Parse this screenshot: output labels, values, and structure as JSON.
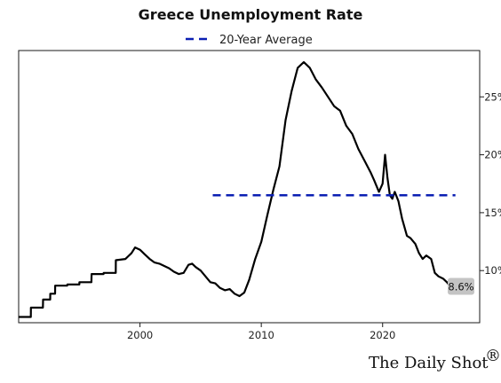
{
  "chart_data": {
    "type": "line",
    "title": "Greece Unemployment Rate",
    "xlabel": "",
    "ylabel": "",
    "xlim": [
      1990.0,
      2028.0
    ],
    "ylim": [
      5.5,
      29.0
    ],
    "x_ticks": [
      2000,
      2010,
      2020
    ],
    "y_ticks": [
      10,
      15,
      20,
      25
    ],
    "y_tick_format": "%",
    "y_axis_side": "right",
    "grid": false,
    "legend_position": "top-center",
    "series": [
      {
        "name": "",
        "color": "#000000",
        "style": "solid",
        "x": [
          1990.0,
          1991.0,
          1991.01,
          1992.0,
          1992.01,
          1992.6,
          1992.61,
          1993.0,
          1993.01,
          1994.0,
          1994.01,
          1995.0,
          1995.01,
          1996.0,
          1996.01,
          1997.0,
          1997.01,
          1998.0,
          1998.01,
          1998.8,
          1999.0,
          1999.3,
          1999.6,
          2000.0,
          2000.4,
          2000.8,
          2001.2,
          2001.6,
          2002.0,
          2002.4,
          2002.8,
          2003.2,
          2003.6,
          2004.0,
          2004.3,
          2004.6,
          2005.0,
          2005.4,
          2005.8,
          2006.2,
          2006.6,
          2007.0,
          2007.4,
          2007.8,
          2008.2,
          2008.6,
          2009.0,
          2009.5,
          2010.0,
          2010.5,
          2011.0,
          2011.5,
          2012.0,
          2012.5,
          2013.0,
          2013.5,
          2014.0,
          2014.5,
          2015.0,
          2015.5,
          2016.0,
          2016.5,
          2017.0,
          2017.5,
          2018.0,
          2018.5,
          2019.0,
          2019.3,
          2019.7,
          2020.0,
          2020.2,
          2020.4,
          2020.6,
          2020.8,
          2021.0,
          2021.3,
          2021.6,
          2022.0,
          2022.3,
          2022.7,
          2023.0,
          2023.3,
          2023.6,
          2024.0,
          2024.3,
          2024.6,
          2025.0,
          2025.3,
          2025.6
        ],
        "values": [
          6.0,
          6.0,
          6.8,
          6.8,
          7.5,
          7.5,
          8.0,
          8.0,
          8.7,
          8.7,
          8.8,
          8.8,
          9.0,
          9.0,
          9.7,
          9.7,
          9.8,
          9.8,
          10.9,
          11.0,
          11.2,
          11.5,
          12.0,
          11.8,
          11.4,
          11.0,
          10.7,
          10.6,
          10.4,
          10.2,
          9.9,
          9.7,
          9.8,
          10.5,
          10.6,
          10.3,
          10.0,
          9.5,
          9.0,
          8.9,
          8.5,
          8.3,
          8.4,
          8.0,
          7.8,
          8.1,
          9.2,
          11.0,
          12.5,
          14.8,
          17.0,
          19.0,
          23.0,
          25.5,
          27.5,
          28.0,
          27.5,
          26.5,
          25.8,
          25.0,
          24.2,
          23.8,
          22.5,
          21.8,
          20.5,
          19.5,
          18.5,
          17.8,
          16.8,
          17.5,
          20.0,
          18.0,
          16.5,
          16.2,
          16.8,
          16.0,
          14.5,
          13.0,
          12.8,
          12.3,
          11.5,
          11.0,
          11.3,
          11.0,
          9.8,
          9.5,
          9.3,
          9.0,
          8.6
        ]
      },
      {
        "name": "20-Year Average",
        "color": "#0b1fb3",
        "style": "dashed",
        "x": [
          2006.0,
          2026.0
        ],
        "values": [
          16.5,
          16.5
        ]
      }
    ],
    "end_label": {
      "x": 2025.6,
      "value": 8.6,
      "text": "8.6%"
    }
  },
  "branding": {
    "logo_text": "The Daily Shot",
    "logo_mark": "®"
  }
}
